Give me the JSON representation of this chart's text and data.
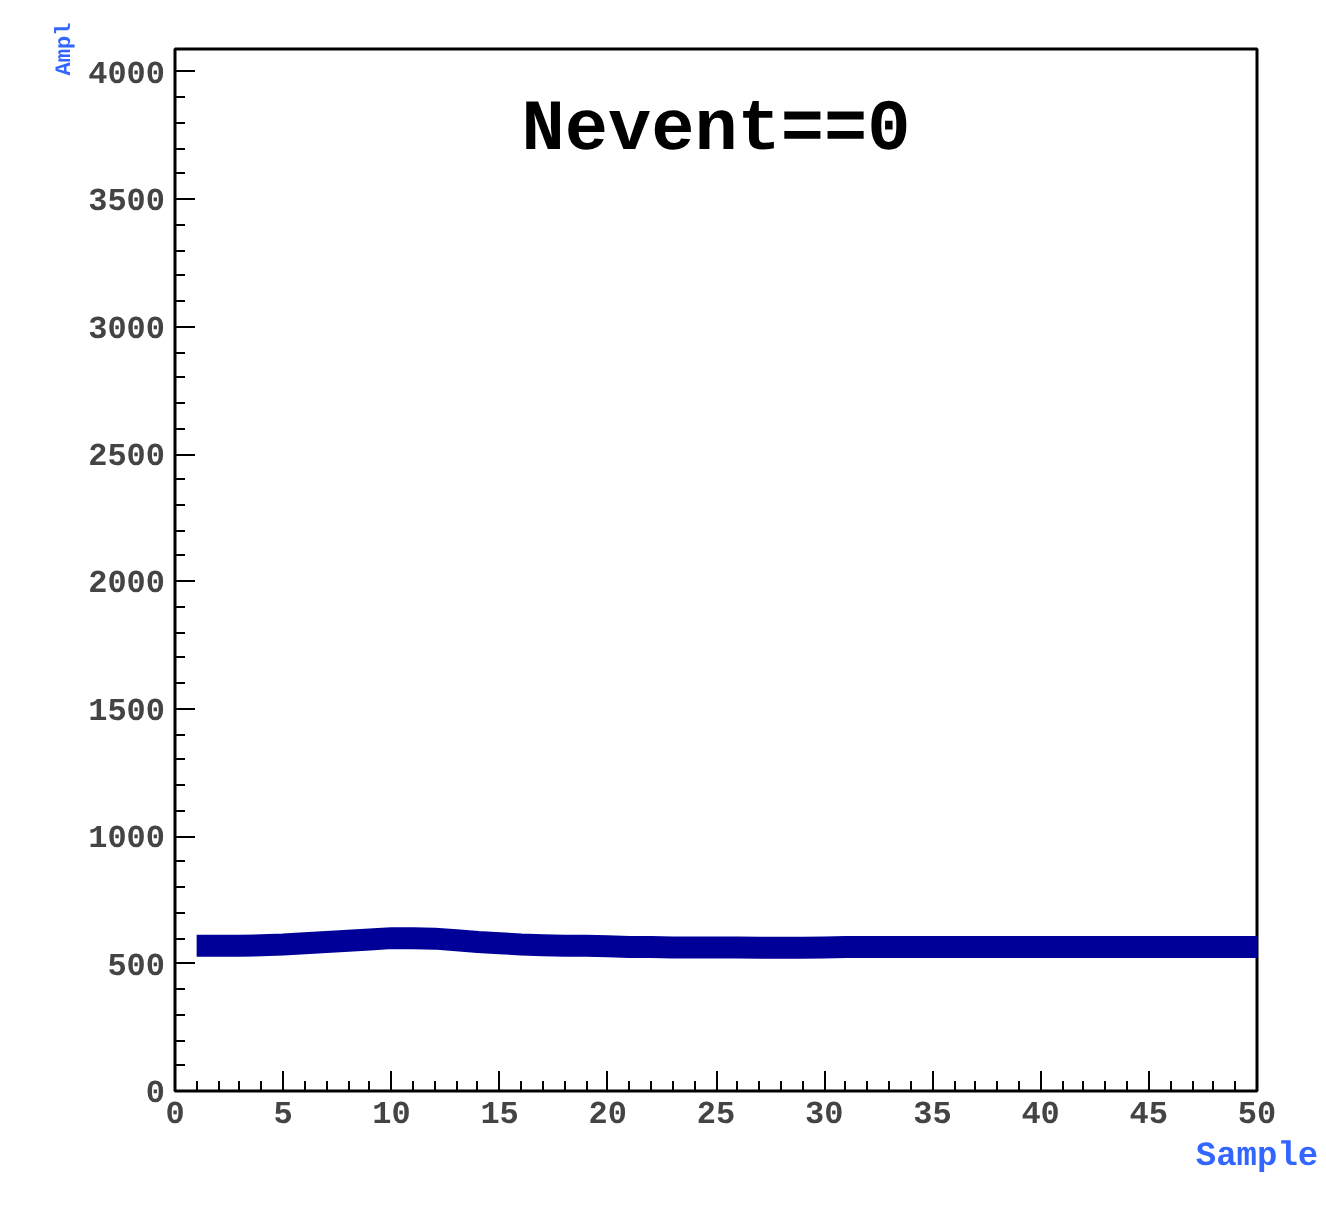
{
  "chart_data": {
    "type": "line",
    "title": "Nevent==0",
    "xlabel": "Sample",
    "ylabel": "Ampl",
    "x": [
      1,
      2,
      3,
      4,
      5,
      6,
      7,
      8,
      9,
      10,
      11,
      12,
      13,
      14,
      15,
      16,
      17,
      18,
      19,
      20,
      21,
      22,
      23,
      24,
      25,
      26,
      27,
      28,
      29,
      30,
      31,
      32,
      33,
      34,
      35,
      36,
      37,
      38,
      39,
      40,
      41,
      42,
      43,
      44,
      45,
      46,
      47,
      48,
      49,
      50
    ],
    "series": [
      {
        "color": "#000099",
        "values": [
          570,
          570,
          570,
          572,
          575,
          580,
          585,
          590,
          595,
          600,
          600,
          598,
          592,
          585,
          580,
          575,
          572,
          570,
          570,
          568,
          565,
          565,
          563,
          563,
          563,
          563,
          562,
          562,
          562,
          563,
          565,
          565,
          565,
          565,
          565,
          565,
          565,
          565,
          565,
          565,
          565,
          565,
          565,
          565,
          565,
          565,
          565,
          565,
          565,
          565
        ]
      }
    ],
    "xlim": [
      0,
      50
    ],
    "ylim": [
      0,
      4090
    ],
    "xticks": [
      0,
      5,
      10,
      15,
      20,
      25,
      30,
      35,
      40,
      45,
      50
    ],
    "yticks": [
      0,
      500,
      1000,
      1500,
      2000,
      2500,
      3000,
      3500,
      4000
    ],
    "grid": false,
    "marker": "none",
    "line_style": "solid"
  }
}
